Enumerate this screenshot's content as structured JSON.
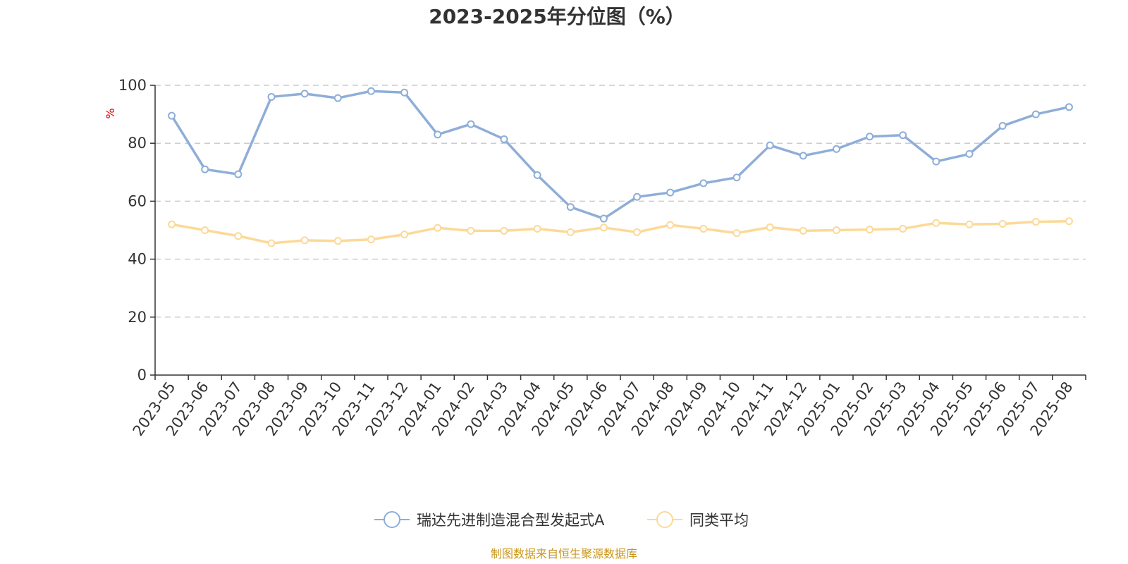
{
  "chart_data": {
    "type": "line",
    "title": "2023-2025年分位图（%）",
    "ylabel": "%",
    "ylim": [
      0,
      100
    ],
    "yticks": [
      0,
      20,
      40,
      60,
      80,
      100
    ],
    "grid": true,
    "legend_position": "bottom",
    "x": [
      "2023-05",
      "2023-06",
      "2023-07",
      "2023-08",
      "2023-09",
      "2023-10",
      "2023-11",
      "2023-12",
      "2024-01",
      "2024-02",
      "2024-03",
      "2024-04",
      "2024-05",
      "2024-06",
      "2024-07",
      "2024-08",
      "2024-09",
      "2024-10",
      "2024-11",
      "2024-12",
      "2025-01",
      "2025-02",
      "2025-03",
      "2025-04",
      "2025-05",
      "2025-06",
      "2025-07",
      "2025-08"
    ],
    "series": [
      {
        "name": "瑞达先进制造混合型发起式A",
        "color": "#8eaed8",
        "values": [
          89.5,
          71.0,
          69.3,
          96.0,
          97.1,
          95.6,
          98.0,
          97.5,
          83.0,
          86.6,
          81.4,
          69.0,
          58.0,
          54.0,
          61.5,
          63.0,
          66.2,
          68.2,
          79.3,
          75.7,
          78.0,
          82.3,
          82.8,
          73.7,
          76.3,
          86.0,
          90.0,
          92.5
        ]
      },
      {
        "name": "同类平均",
        "color": "#fcd998",
        "values": [
          52.0,
          50.0,
          48.0,
          45.5,
          46.5,
          46.3,
          46.8,
          48.5,
          50.8,
          49.8,
          49.8,
          50.5,
          49.3,
          50.9,
          49.3,
          51.8,
          50.5,
          49.0,
          51.0,
          49.8,
          50.0,
          50.2,
          50.5,
          52.5,
          52.0,
          52.2,
          52.9,
          53.1
        ]
      }
    ]
  },
  "source_text": "制图数据来自恒生聚源数据库"
}
